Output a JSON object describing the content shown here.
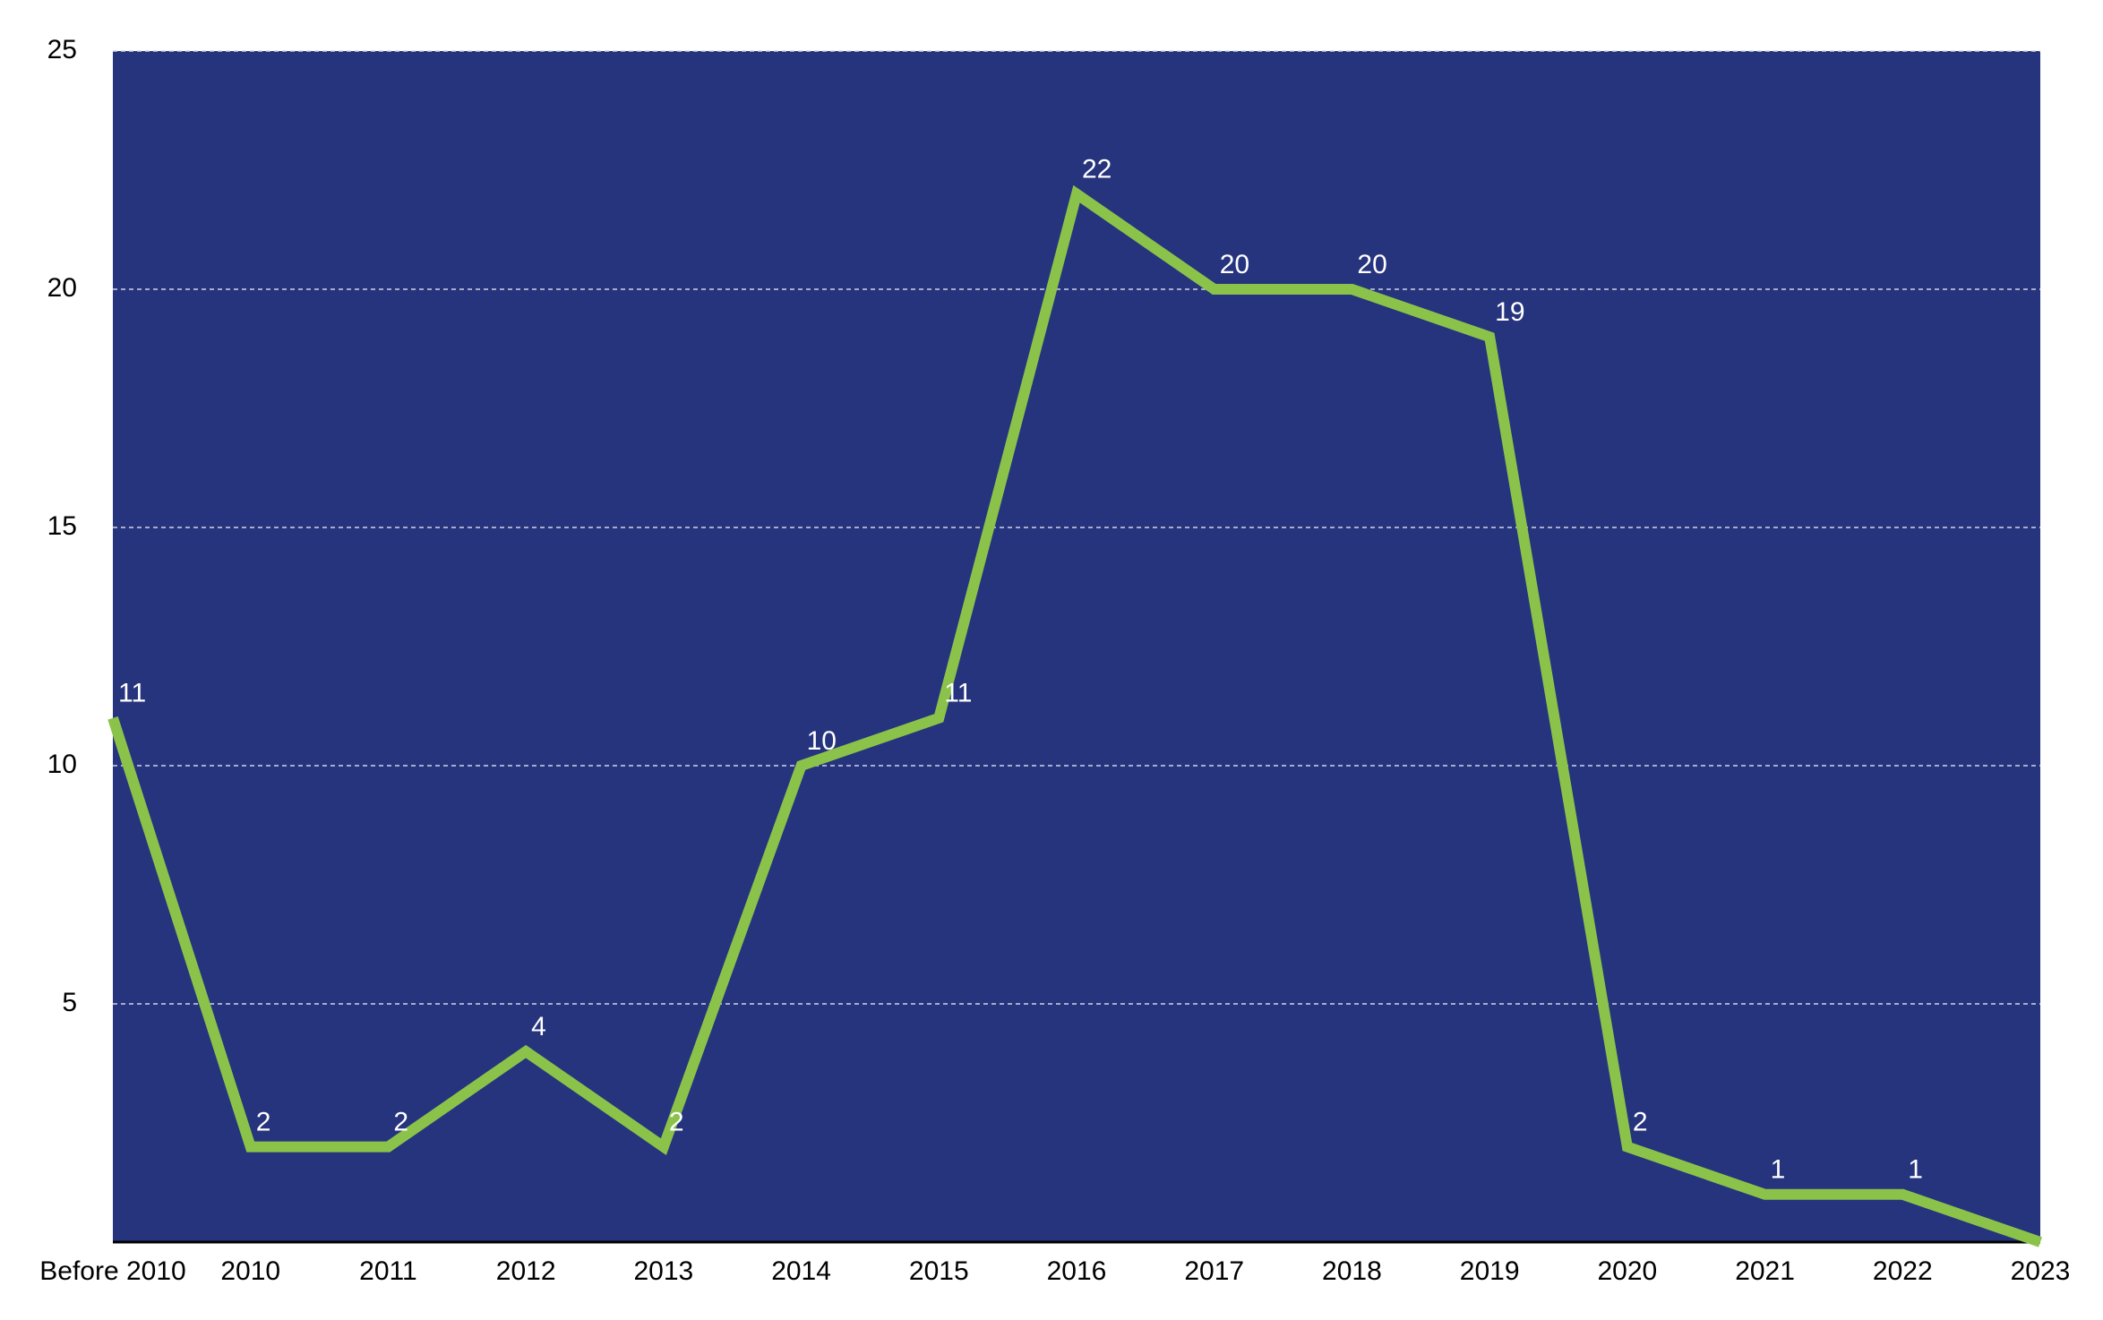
{
  "chart_data": {
    "type": "line",
    "categories": [
      "Before 2010",
      "2010",
      "2011",
      "2012",
      "2013",
      "2014",
      "2015",
      "2016",
      "2017",
      "2018",
      "2019",
      "2020",
      "2021",
      "2022",
      "2023"
    ],
    "values": [
      11,
      2,
      2,
      4,
      2,
      10,
      11,
      22,
      20,
      20,
      19,
      2,
      1,
      1,
      0
    ],
    "value_labels": [
      "11",
      "2",
      "2",
      "4",
      "2",
      "10",
      "11",
      "22",
      "20",
      "20",
      "19",
      "2",
      "1",
      "1",
      null
    ],
    "color": "#8bc34a",
    "background": "#26347e",
    "ylim": [
      0,
      25
    ],
    "yticks": [
      5,
      10,
      15,
      20,
      25
    ],
    "grid": true
  }
}
